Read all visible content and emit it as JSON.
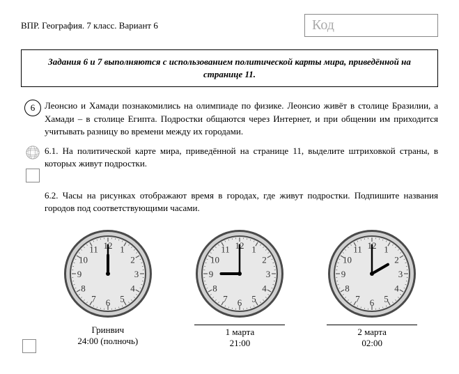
{
  "header": {
    "title": "ВПР. География. 7 класс. Вариант 6",
    "code_label": "Код"
  },
  "instruction": "Задания 6 и 7 выполняются с использованием политической карты мира, приведённой на странице 11.",
  "task_number": "6",
  "task_intro": "Леонсио и Хамади познакомились на олимпиаде по физике. Леонсио живёт в столице Бразилии, а Хамади – в столице Египта. Подростки общаются через Интернет, и при общении им приходится учитывать разницу во времени между их городами.",
  "subtask_6_1": "6.1. На политической карте мира, приведённой на странице 11, выделите штриховкой страны, в которых живут подростки.",
  "subtask_6_2": "6.2. Часы на рисунках отображают время в городах, где живут подростки. Подпишите названия городов под соответствующими часами.",
  "clocks": [
    {
      "city": "Гринвич",
      "datetime": "24:00 (полночь)",
      "hour_angle": 0,
      "minute_angle": 0,
      "has_line": false
    },
    {
      "city": "1 марта",
      "datetime": "21:00",
      "hour_angle": 270,
      "minute_angle": 0,
      "has_line": true
    },
    {
      "city": "2 марта",
      "datetime": "02:00",
      "hour_angle": 60,
      "minute_angle": 0,
      "has_line": true
    }
  ],
  "clock_style": {
    "size": 130,
    "face_fill": "#e8e8e8",
    "rim_outer": "#4a4a4a",
    "rim_inner": "#d0d0d0",
    "number_color": "#333",
    "hand_color": "#000"
  }
}
